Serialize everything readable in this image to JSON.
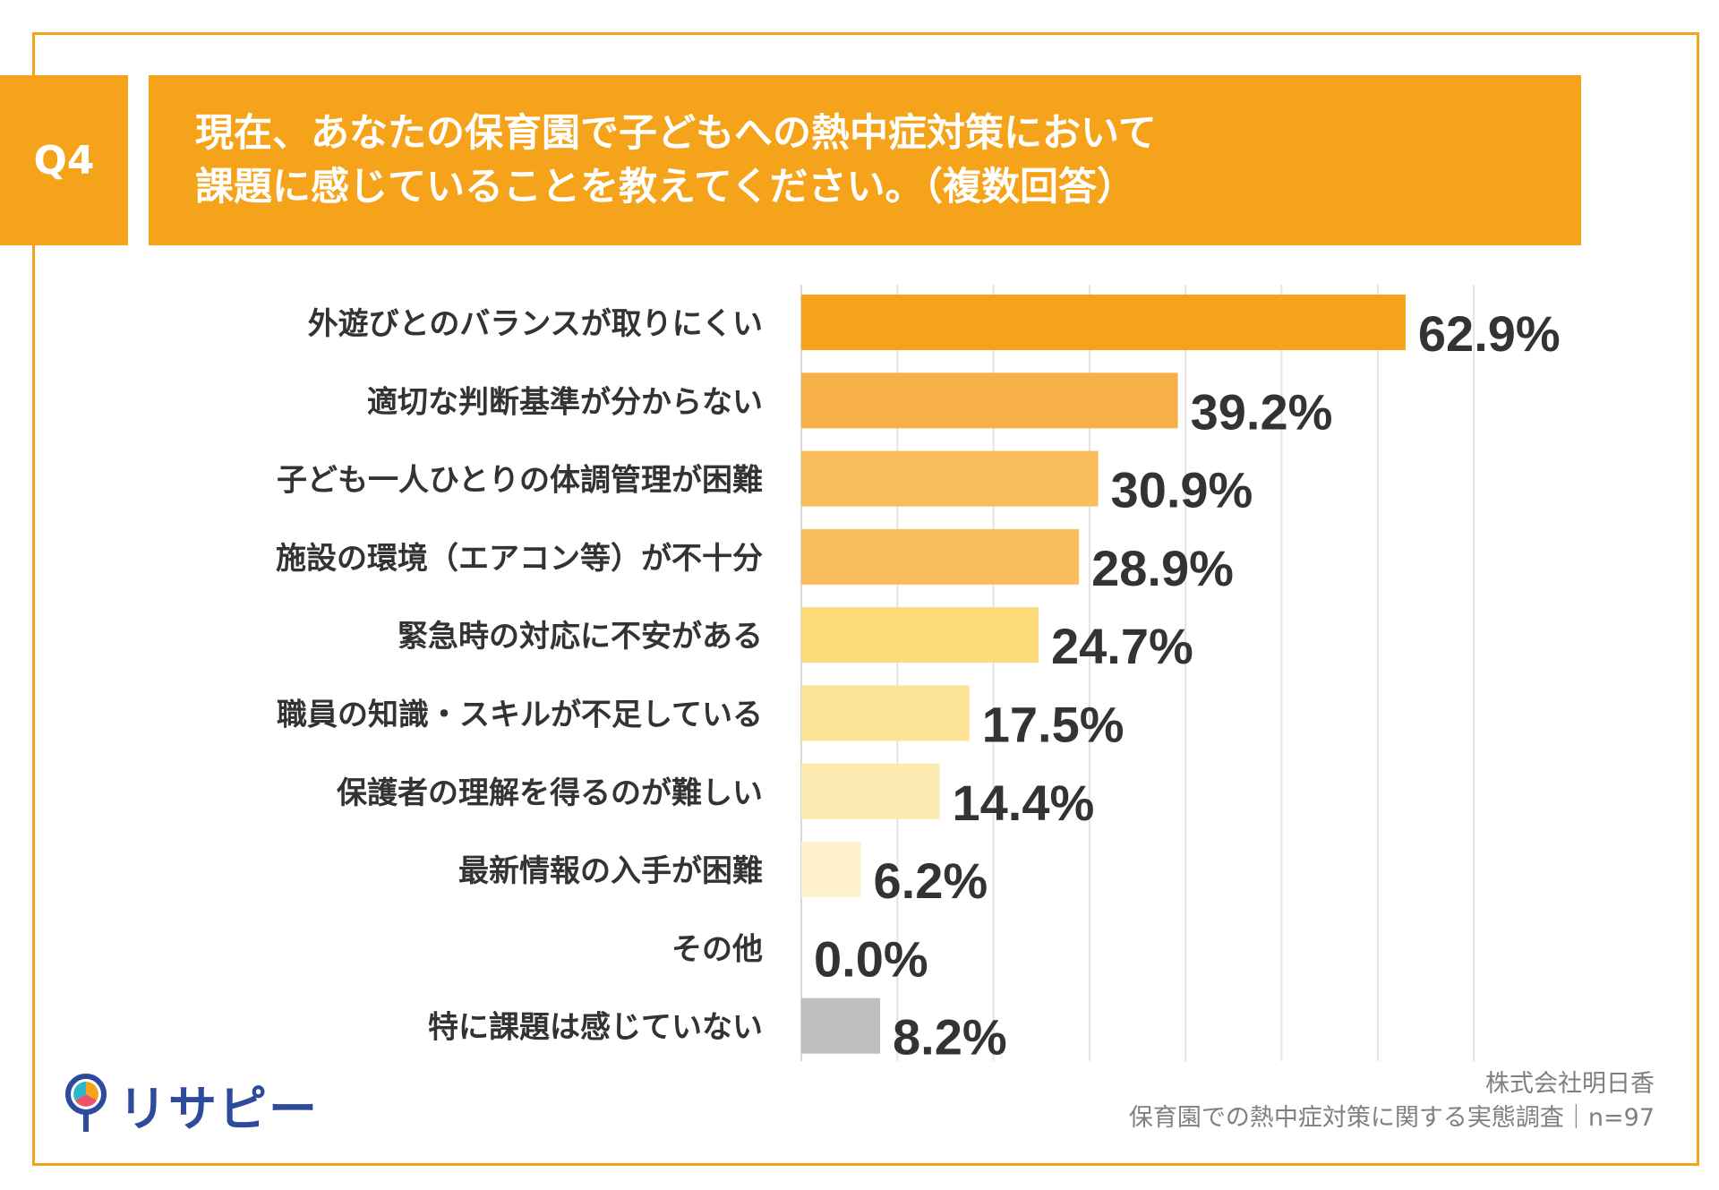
{
  "header": {
    "badge": "Q4",
    "title_line1": "現在、あなたの保育園で子どもへの熱中症対策において",
    "title_line2": "課題に感じていることを教えてください。（複数回答）",
    "accent_color": "#f5a31a"
  },
  "chart_data": {
    "type": "bar",
    "orientation": "horizontal",
    "categories": [
      "外遊びとのバランスが取りにくい",
      "適切な判断基準が分からない",
      "子ども一人ひとりの体調管理が困難",
      "施設の環境（エアコン等）が不十分",
      "緊急時の対応に不安がある",
      "職員の知識・スキルが不足している",
      "保護者の理解を得るのが難しい",
      "最新情報の入手が困難",
      "その他",
      "特に課題は感じていない"
    ],
    "values": [
      62.9,
      39.2,
      30.9,
      28.9,
      24.7,
      17.5,
      14.4,
      6.2,
      0.0,
      8.2
    ],
    "value_labels": [
      "62.9%",
      "39.2%",
      "30.9%",
      "28.9%",
      "24.7%",
      "17.5%",
      "14.4%",
      "6.2%",
      "0.0%",
      "8.2%"
    ],
    "bar_colors": [
      "#f5a31a",
      "#f7b047",
      "#f9bd5e",
      "#f9bd5e",
      "#fbdb7a",
      "#fde396",
      "#fdeab0",
      "#fef1cc",
      "#fef1cc",
      "#bfbfbf"
    ],
    "xlim": [
      0,
      70
    ],
    "grid": true,
    "grid_step": 10
  },
  "credit": {
    "line1": "株式会社明日香",
    "line2": "保育園での熱中症対策に関する実態調査｜n=97"
  },
  "logo": {
    "text": "リサピー",
    "mark_colors": [
      "#2d4a9c",
      "#f5a31a",
      "#e9546b",
      "#2fb5c9"
    ]
  }
}
